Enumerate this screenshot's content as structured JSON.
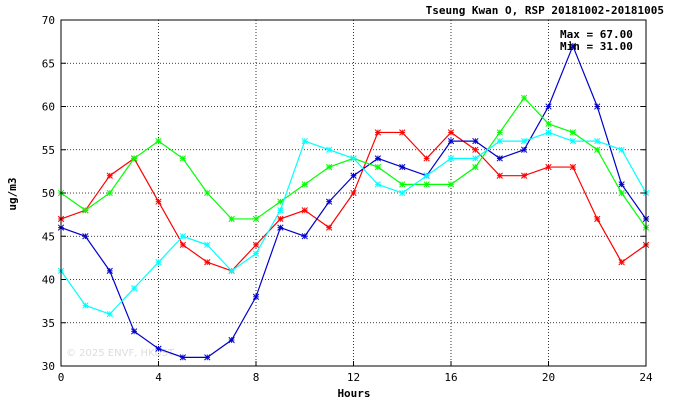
{
  "chart_data": {
    "type": "line",
    "title": "Tseung Kwan O, RSP 20181002-20181005",
    "xlabel": "Hours",
    "ylabel": "ug/m3",
    "xlim": [
      0,
      24
    ],
    "ylim": [
      30,
      70
    ],
    "xticks": [
      0,
      4,
      8,
      12,
      16,
      20,
      24
    ],
    "yticks": [
      30,
      35,
      40,
      45,
      50,
      55,
      60,
      65,
      70
    ],
    "grid": true,
    "max_label": "Max = 67.00",
    "min_label": "Min = 31.00",
    "watermark": "© 2025  ENVF, HKUST",
    "x": [
      0,
      1,
      2,
      3,
      4,
      5,
      6,
      7,
      8,
      9,
      10,
      11,
      12,
      13,
      14,
      15,
      16,
      17,
      18,
      19,
      20,
      21,
      22,
      23,
      24
    ],
    "series": [
      {
        "color": "#ff0000",
        "values": [
          47,
          48,
          52,
          54,
          49,
          44,
          42,
          41,
          44,
          47,
          48,
          46,
          50,
          57,
          57,
          54,
          57,
          55,
          52,
          52,
          53,
          53,
          47,
          42,
          44
        ]
      },
      {
        "color": "#0000cc",
        "values": [
          46,
          45,
          41,
          34,
          32,
          31,
          31,
          33,
          38,
          46,
          45,
          49,
          52,
          54,
          53,
          52,
          56,
          56,
          54,
          55,
          60,
          67,
          60,
          51,
          47
        ]
      },
      {
        "color": "#00ff00",
        "values": [
          50,
          48,
          50,
          54,
          56,
          54,
          50,
          47,
          47,
          49,
          51,
          53,
          54,
          53,
          51,
          51,
          51,
          53,
          57,
          61,
          58,
          57,
          55,
          50,
          46
        ]
      },
      {
        "color": "#00ffff",
        "values": [
          41,
          37,
          36,
          39,
          42,
          45,
          44,
          41,
          43,
          48,
          56,
          55,
          54,
          51,
          50,
          52,
          54,
          54,
          56,
          56,
          57,
          56,
          56,
          55,
          50
        ]
      }
    ]
  }
}
